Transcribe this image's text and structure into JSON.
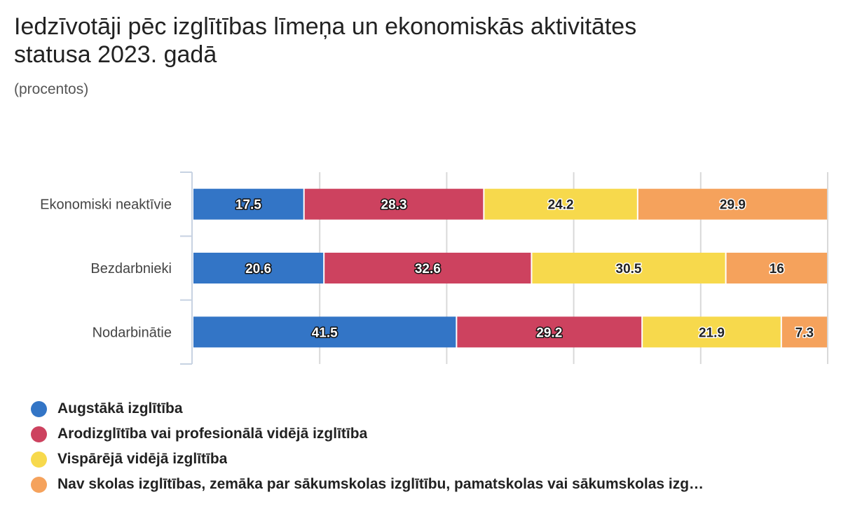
{
  "chart_data": {
    "type": "bar",
    "orientation": "horizontal",
    "stacked": true,
    "title": "Iedzīvotāji pēc izglītības līmeņa un ekonomiskās aktivitātes statusa 2023. gadā",
    "subtitle": "(procentos)",
    "categories": [
      "Ekonomiski neaktīvie",
      "Bezdarbnieki",
      "Nodarbinātie"
    ],
    "series": [
      {
        "name": "Augstākā izglītība",
        "color": "#3375c6",
        "label_color": "#ffffff",
        "values": [
          17.5,
          20.6,
          41.5
        ]
      },
      {
        "name": "Arodizglītība vai profesionālā vidējā izglītība",
        "color": "#cd425f",
        "label_color": "#ffffff",
        "values": [
          28.3,
          32.6,
          29.2
        ]
      },
      {
        "name": "Vispārējā vidējā izglītība",
        "color": "#f7d94c",
        "label_color": "#222222",
        "values": [
          24.2,
          30.5,
          21.9
        ]
      },
      {
        "name": "Nav skolas izglītības, zemāka par sākumskolas izglītību, pamatskolas vai sākumskolas izg…",
        "color": "#f5a25c",
        "label_color": "#222222",
        "values": [
          29.9,
          16,
          7.3
        ]
      }
    ],
    "xlim": [
      0,
      100
    ],
    "grid": true,
    "legend_position": "bottom"
  }
}
